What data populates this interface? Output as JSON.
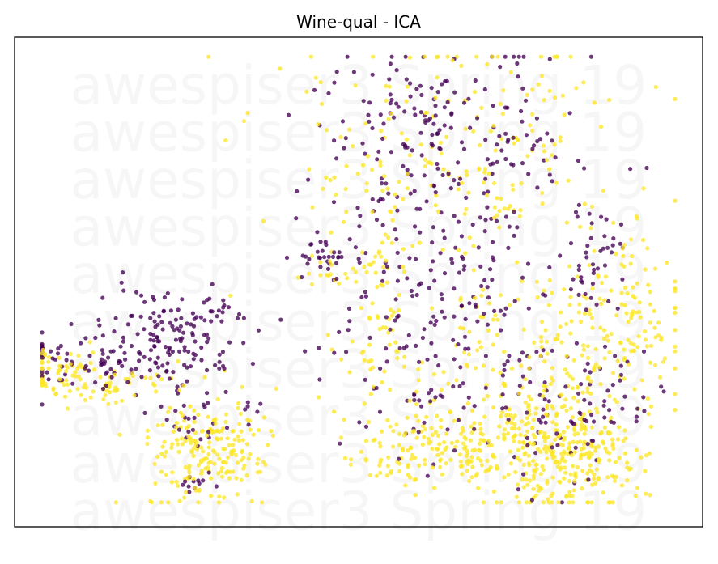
{
  "chart_data": {
    "type": "scatter",
    "title": "Wine-qual - ICA",
    "xlabel": "",
    "ylabel": "",
    "xlim": [
      0,
      100
    ],
    "ylim": [
      0,
      100
    ],
    "axes_ticks": false,
    "grid": false,
    "legend": "none",
    "watermark": "awespiser3 Spring 19",
    "series": [
      {
        "color": "#fde725",
        "clusters": [
          {
            "cx": 6,
            "cy": 32,
            "sx": 2.6,
            "sy": 2.2,
            "n": 55
          },
          {
            "cx": 14,
            "cy": 29,
            "sx": 4.5,
            "sy": 2.3,
            "n": 60
          },
          {
            "cx": 28,
            "cy": 16,
            "sx": 4.5,
            "sy": 5.5,
            "n": 200
          },
          {
            "cx": 62,
            "cy": 16,
            "sx": 7,
            "sy": 4,
            "n": 160
          },
          {
            "cx": 80,
            "cy": 16,
            "sx": 6,
            "sy": 7,
            "n": 320
          },
          {
            "cx": 72,
            "cy": 33,
            "sx": 12,
            "sy": 10,
            "n": 180
          },
          {
            "cx": 63,
            "cy": 78,
            "sx": 13,
            "sy": 13,
            "n": 210
          },
          {
            "cx": 88,
            "cy": 44,
            "sx": 4.5,
            "sy": 8,
            "n": 110
          },
          {
            "cx": 53,
            "cy": 46,
            "sx": 2.5,
            "sy": 14,
            "n": 60
          },
          {
            "cx": 46,
            "cy": 52,
            "sx": 1.8,
            "sy": 2,
            "n": 15
          }
        ]
      },
      {
        "color": "#440154",
        "clusters": [
          {
            "cx": 23,
            "cy": 39,
            "sx": 5.5,
            "sy": 5,
            "n": 150
          },
          {
            "cx": 10,
            "cy": 34,
            "sx": 5,
            "sy": 3,
            "n": 70
          },
          {
            "cx": 27,
            "cy": 22,
            "sx": 4,
            "sy": 3,
            "n": 30
          },
          {
            "cx": 26,
            "cy": 9,
            "sx": 1.5,
            "sy": 1.5,
            "n": 12
          },
          {
            "cx": 45,
            "cy": 55,
            "sx": 2.2,
            "sy": 1.5,
            "n": 25
          },
          {
            "cx": 61,
            "cy": 46,
            "sx": 9,
            "sy": 14,
            "n": 210
          },
          {
            "cx": 63,
            "cy": 80,
            "sx": 10,
            "sy": 10,
            "n": 180
          },
          {
            "cx": 80,
            "cy": 25,
            "sx": 7,
            "sy": 7,
            "n": 100
          },
          {
            "cx": 85,
            "cy": 55,
            "sx": 3,
            "sy": 6,
            "n": 40
          }
        ]
      }
    ]
  }
}
